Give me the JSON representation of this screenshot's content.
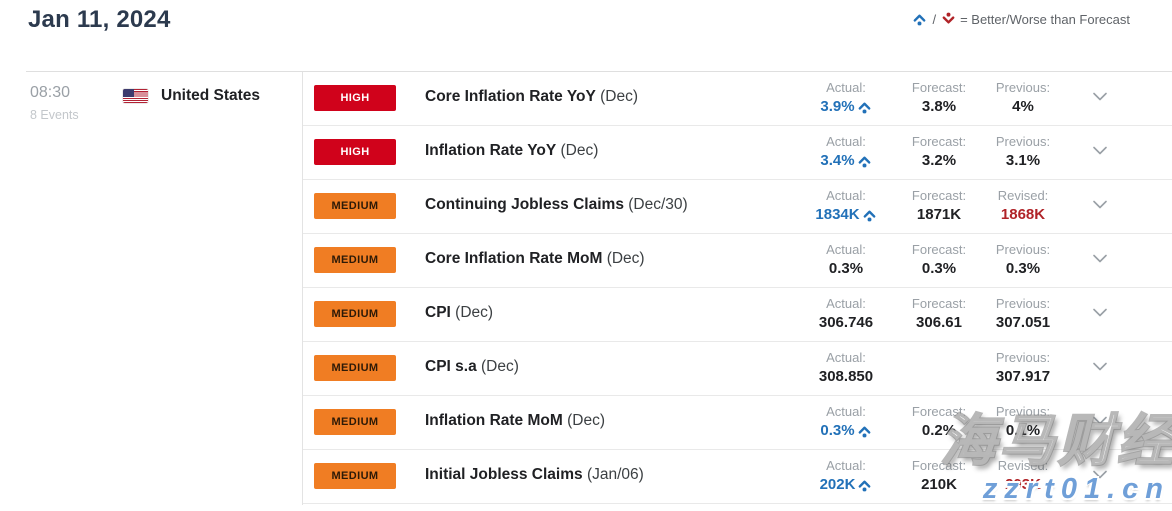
{
  "header": {
    "date": "Jan 11, 2024",
    "legend": {
      "better_icon": "caret-up-dot",
      "worse_icon": "caret-down-dot",
      "separator": "/",
      "text": "= Better/Worse than Forecast"
    }
  },
  "group": {
    "time": "08:30",
    "events_count": "8 Events",
    "country": "United States",
    "flag": "us-flag"
  },
  "colors": {
    "title_color": "#2c3a4e",
    "high_red": "#d0021b",
    "medium_orange": "#f07d23",
    "better_blue": "#2271b8",
    "revised_red": "#b02328"
  },
  "rows": [
    {
      "impact": "HIGH",
      "impact_level": "high",
      "title": "Core Inflation Rate YoY",
      "period": "(Dec)",
      "actual_label": "Actual:",
      "actual": "3.9%",
      "actual_direction": "better",
      "forecast_label": "Forecast:",
      "forecast": "3.8%",
      "third_label": "Previous:",
      "third": "4%",
      "third_revised": false
    },
    {
      "impact": "HIGH",
      "impact_level": "high",
      "title": "Inflation Rate YoY",
      "period": "(Dec)",
      "actual_label": "Actual:",
      "actual": "3.4%",
      "actual_direction": "better",
      "forecast_label": "Forecast:",
      "forecast": "3.2%",
      "third_label": "Previous:",
      "third": "3.1%",
      "third_revised": false
    },
    {
      "impact": "MEDIUM",
      "impact_level": "medium",
      "title": "Continuing Jobless Claims",
      "period": "(Dec/30)",
      "actual_label": "Actual:",
      "actual": "1834K",
      "actual_direction": "better",
      "forecast_label": "Forecast:",
      "forecast": "1871K",
      "third_label": "Revised:",
      "third": "1868K",
      "third_revised": true
    },
    {
      "impact": "MEDIUM",
      "impact_level": "medium",
      "title": "Core Inflation Rate MoM",
      "period": "(Dec)",
      "actual_label": "Actual:",
      "actual": "0.3%",
      "actual_direction": null,
      "forecast_label": "Forecast:",
      "forecast": "0.3%",
      "third_label": "Previous:",
      "third": "0.3%",
      "third_revised": false
    },
    {
      "impact": "MEDIUM",
      "impact_level": "medium",
      "title": "CPI",
      "period": "(Dec)",
      "actual_label": "Actual:",
      "actual": "306.746",
      "actual_direction": null,
      "forecast_label": "Forecast:",
      "forecast": "306.61",
      "third_label": "Previous:",
      "third": "307.051",
      "third_revised": false
    },
    {
      "impact": "MEDIUM",
      "impact_level": "medium",
      "title": "CPI s.a",
      "period": "(Dec)",
      "actual_label": "Actual:",
      "actual": "308.850",
      "actual_direction": null,
      "forecast_label": "",
      "forecast": "",
      "third_label": "Previous:",
      "third": "307.917",
      "third_revised": false
    },
    {
      "impact": "MEDIUM",
      "impact_level": "medium",
      "title": "Inflation Rate MoM",
      "period": "(Dec)",
      "actual_label": "Actual:",
      "actual": "0.3%",
      "actual_direction": "better",
      "forecast_label": "Forecast:",
      "forecast": "0.2%",
      "third_label": "Previous:",
      "third": "0.1%",
      "third_revised": false
    },
    {
      "impact": "MEDIUM",
      "impact_level": "medium",
      "title": "Initial Jobless Claims",
      "period": "(Jan/06)",
      "actual_label": "Actual:",
      "actual": "202K",
      "actual_direction": "better",
      "forecast_label": "Forecast:",
      "forecast": "210K",
      "third_label": "Revised:",
      "third": "203K",
      "third_revised": true
    }
  ],
  "watermark": {
    "line1": "海马财经",
    "line2": "zzrt01.cn"
  }
}
